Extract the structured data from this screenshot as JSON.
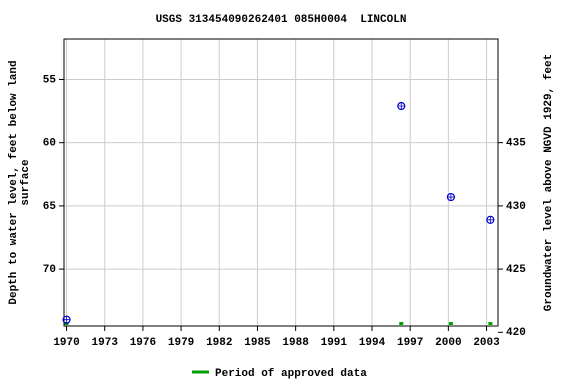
{
  "chart_data": {
    "type": "scatter",
    "title": "USGS 313454090262401 085H0004  LINCOLN",
    "y_label": [
      "Depth to water level, feet below land",
      "surface"
    ],
    "y2_label": "Groundwater level above NGVD 1929, feet",
    "x": [
      1970.0,
      1996.3,
      2000.2,
      2003.3
    ],
    "series": [
      {
        "name": "Depth to water level",
        "color": "#0000cc",
        "values": [
          74.0,
          57.1,
          64.3,
          66.1
        ]
      }
    ],
    "approved_periods": {
      "name": "Period of approved data",
      "color": "#00a000",
      "x": [
        1970.0,
        1996.3,
        2000.2,
        2003.3
      ]
    },
    "xlim": [
      1969.8,
      2003.9
    ],
    "xticks": [
      1970,
      1973,
      1976,
      1979,
      1982,
      1985,
      1988,
      1991,
      1994,
      1997,
      2000,
      2003
    ],
    "ylim": [
      51.8,
      74.5
    ],
    "y_inverted": true,
    "yticks": [
      55,
      60,
      65,
      70
    ],
    "y2lim": [
      443.2,
      420.5
    ],
    "y2ticks": [
      420,
      425,
      430,
      435
    ],
    "grid": true
  }
}
